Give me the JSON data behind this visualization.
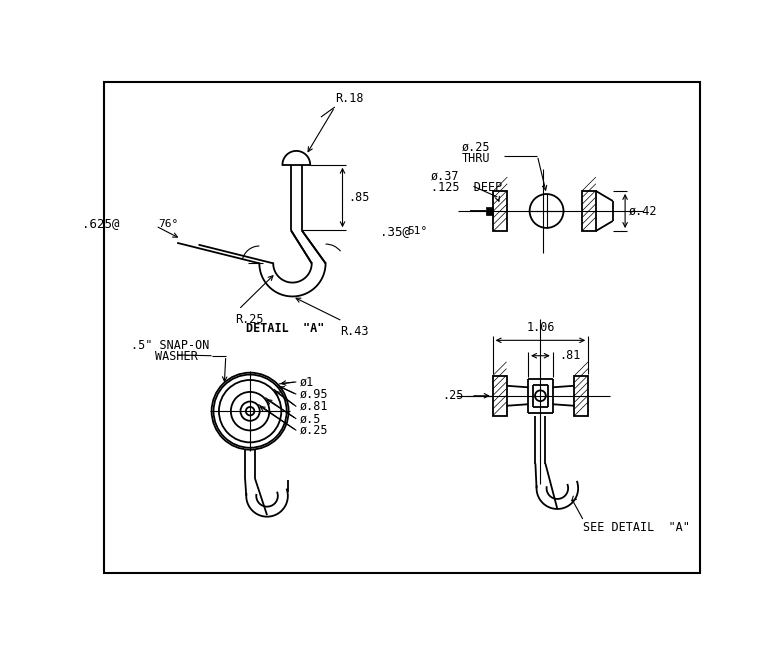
{
  "bg_color": "#ffffff",
  "line_color": "#000000",
  "lw": 1.3,
  "thin_lw": 0.8,
  "font_size": 8.5,
  "annotations": {
    "top_left": {
      "R18": "R.18",
      "dim85": ".85",
      "dim625": ".625@",
      "angle76": "76°",
      "dim35": ".35@",
      "angle51": "51°",
      "R25": "R.25",
      "R43": "R.43",
      "detail_a": "DETAIL  \"A\""
    },
    "top_right": {
      "phi25": "ø.25",
      "thru": "THRU",
      "phi37": "ø.37",
      "deep": ".125  DEEP",
      "phi42": "ø.42"
    },
    "bot_left": {
      "washer": ".5\" SNAP-ON\n  WASHER",
      "phi1": "ø1",
      "phi95": "ø.95",
      "phi81": "ø.81",
      "phi5": "ø.5",
      "phi25": "ø.25"
    },
    "bot_right": {
      "dim106": "1.06",
      "dim81": ".81",
      "dim25": ".25",
      "see_detail": "SEE DETAIL  \"A\""
    }
  }
}
